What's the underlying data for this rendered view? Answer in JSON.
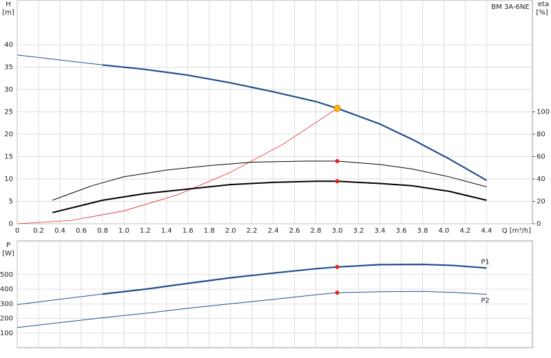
{
  "chart_data": [
    {
      "type": "line",
      "title": "BM 3A-6NE",
      "ylabel": "H",
      "yunit": "[m]",
      "y2label": "eta",
      "y2unit": "[%]",
      "xlabel": "Q [m³/h]",
      "xlim": [
        0,
        4.83
      ],
      "xticks": [
        0,
        0.2,
        0.4,
        0.6,
        0.8,
        {
          "value": 1,
          "label": "1.0"
        },
        1.2,
        1.4,
        1.6,
        1.8,
        {
          "value": 2,
          "label": "2.0"
        },
        2.2,
        2.4,
        2.6,
        2.8,
        {
          "value": 3,
          "label": "3.0"
        },
        3.2,
        3.4,
        3.6,
        3.8,
        {
          "value": 4,
          "label": "4.0"
        },
        4.2,
        4.4
      ],
      "ylim": [
        0,
        50
      ],
      "yticks": [
        0,
        5,
        10,
        15,
        20,
        25,
        30,
        35,
        40
      ],
      "y2lim": [
        0,
        200
      ],
      "y2ticks": [
        0,
        20,
        40,
        60,
        80,
        100
      ],
      "grid": true,
      "series": [
        {
          "color": "#1f4e8c",
          "line_width": 1,
          "x": [
            0,
            0.8
          ],
          "values": [
            37.7,
            35.5
          ]
        },
        {
          "color": "#1f4e8c",
          "line_width": 2.2,
          "x": [
            0.8,
            1.2,
            1.6,
            2.0,
            2.4,
            2.8,
            3.0,
            3.4,
            3.7,
            4.05,
            4.4
          ],
          "values": [
            35.5,
            34.5,
            33.2,
            31.5,
            29.5,
            27.3,
            25.8,
            22.3,
            18.9,
            14.5,
            9.7
          ]
        },
        {
          "color": "#e8211b",
          "line_width": 0.8,
          "x": [
            0,
            0.5,
            1.0,
            1.5,
            2.0,
            2.5,
            3.0
          ],
          "values": [
            0,
            0.7,
            2.87,
            6.45,
            11.5,
            17.9,
            25.8
          ]
        },
        {
          "color": "#000000",
          "line_width": 1,
          "axis": "y2",
          "x": [
            0.33,
            0.7,
            1.0,
            1.4,
            1.8,
            2.2,
            2.7,
            3.0,
            3.4,
            3.7,
            4.05,
            4.4
          ],
          "values": [
            21,
            34,
            42,
            48,
            52,
            55,
            56,
            56,
            53,
            49,
            42,
            33
          ]
        },
        {
          "color": "#000000",
          "line_width": 2,
          "axis": "y2",
          "x": [
            0.33,
            0.8,
            1.2,
            1.6,
            2.0,
            2.4,
            2.8,
            3.0,
            3.4,
            3.7,
            4.05,
            4.4
          ],
          "values": [
            10,
            21,
            27,
            31,
            35,
            37,
            38,
            38,
            36,
            34,
            29,
            21
          ]
        }
      ],
      "points": [
        {
          "x": 3.0,
          "y": 25.8,
          "color": "#f5b800"
        },
        {
          "x": 3.0,
          "y": 56,
          "axis": "y2",
          "color": "#e8211b"
        },
        {
          "x": 3.0,
          "y": 38,
          "axis": "y2",
          "color": "#e8211b"
        }
      ]
    },
    {
      "type": "line",
      "ylabel": "P",
      "yunit": "[W]",
      "xlim": [
        0,
        4.83
      ],
      "ylim": [
        0,
        730
      ],
      "yticks": [
        100,
        200,
        300,
        400,
        500
      ],
      "grid": true,
      "series": [
        {
          "name": "P1",
          "color": "#1f4e8c",
          "line_width": 1,
          "x": [
            0,
            0.8
          ],
          "values": [
            295,
            367
          ]
        },
        {
          "color": "#1f4e8c",
          "line_width": 2.2,
          "x": [
            0.8,
            1.2,
            1.6,
            2.0,
            2.4,
            2.8,
            3.0,
            3.4,
            3.8,
            4.1,
            4.4
          ],
          "values": [
            367,
            400,
            440,
            478,
            510,
            540,
            552,
            568,
            570,
            562,
            545
          ]
        },
        {
          "name": "P2",
          "color": "#1f4e8c",
          "line_width": 1,
          "x": [
            0,
            0.8,
            1.2,
            1.6,
            2.0,
            2.4,
            2.8,
            3.0,
            3.4,
            3.8,
            4.1,
            4.4
          ],
          "values": [
            138,
            205,
            235,
            270,
            300,
            330,
            362,
            376,
            383,
            385,
            378,
            365
          ]
        }
      ],
      "points": [
        {
          "x": 3.0,
          "y": 552,
          "color": "#e8211b"
        },
        {
          "x": 3.0,
          "y": 376,
          "color": "#e8211b"
        }
      ]
    }
  ]
}
